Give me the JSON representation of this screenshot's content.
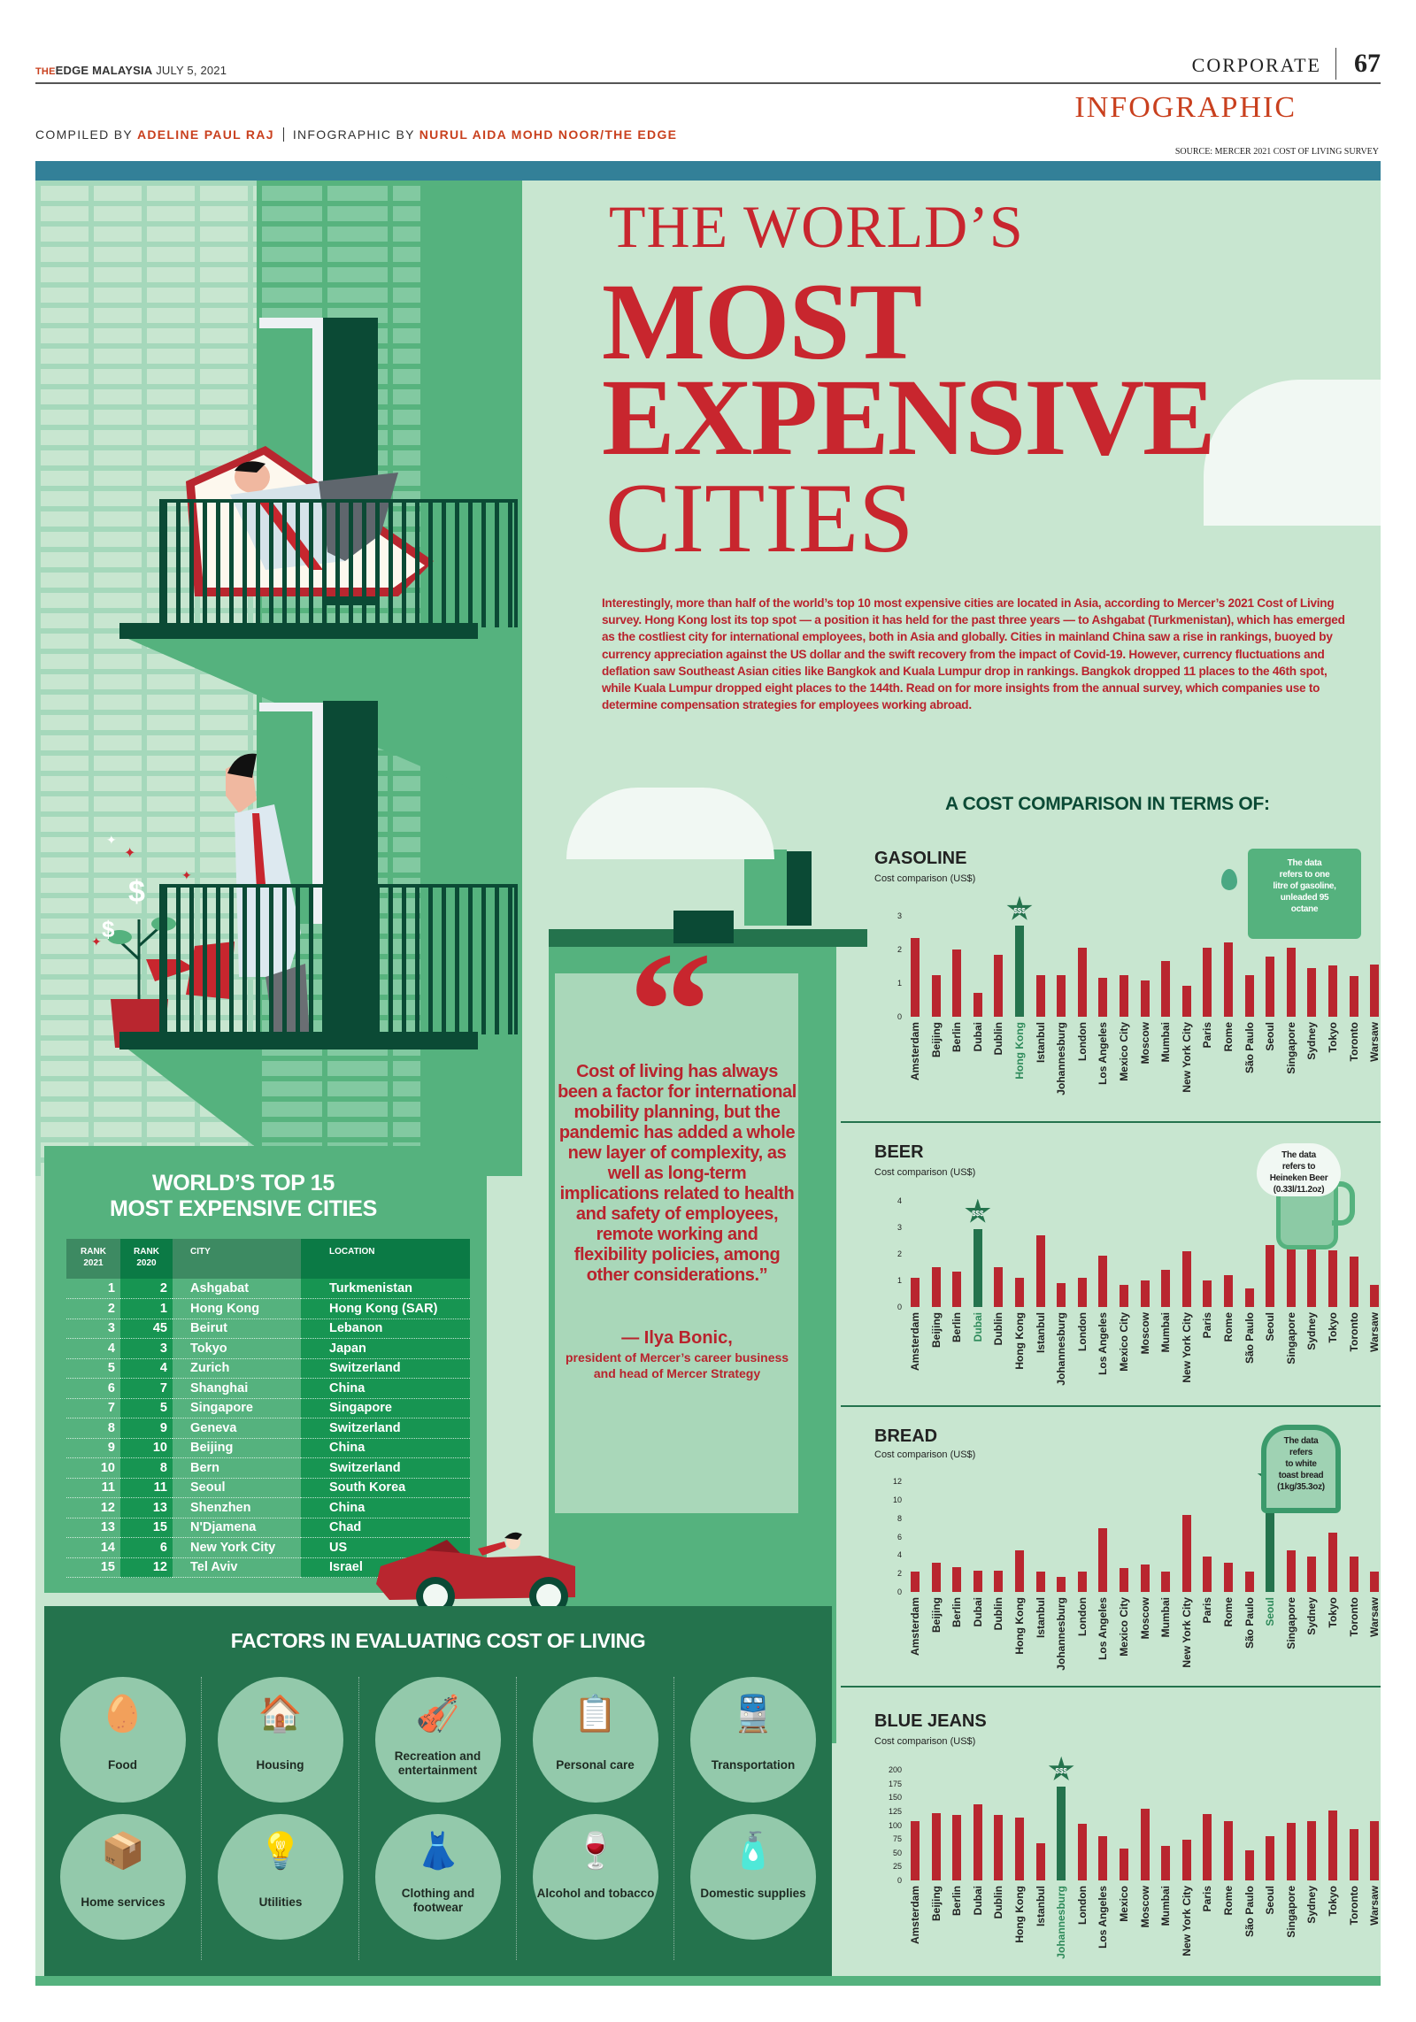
{
  "masthead": {
    "brand_the": "THE",
    "brand_edge": "EDGE",
    "brand_malaysia": "MALAYSIA",
    "date": "JULY 5, 2021",
    "section": "CORPORATE",
    "page_number": "67",
    "label": "INFOGRAPHIC",
    "compiled_prefix": "COMPILED BY",
    "compiled_name": "ADELINE PAUL RAJ",
    "infographic_prefix": "INFOGRAPHIC BY",
    "infographic_name": "NURUL AIDA MOHD NOOR/THE EDGE",
    "source": "SOURCE: MERCER 2021 COST OF LIVING SURVEY"
  },
  "headline": {
    "line1": "THE WORLD’S",
    "line2": "MOST",
    "line3": "EXPENSIVE",
    "line4": "CITIES"
  },
  "intro": "Interestingly, more than half of the world’s top 10 most expensive cities are located in Asia, according to Mercer’s 2021 Cost of Living survey. Hong Kong lost its top spot — a position it has held for the past three years — to Ashgabat (Turkmenistan), which has emerged as the costliest city for international employees, both in Asia and globally. Cities in mainland China saw a rise in rankings, buoyed by currency appreciation against the US dollar and the swift recovery from the impact of Covid-19. However, currency fluctuations and deflation saw Southeast Asian cities like Bangkok and Kuala Lumpur drop in rankings. Bangkok dropped 11 places to the 46th spot, while Kuala Lumpur dropped eight places to the 144th. Read on for more insights from the annual survey, which companies use to determine compensation strategies for employees working abroad.",
  "comparison_title": "A COST COMPARISON IN TERMS OF:",
  "colors": {
    "bar": "#b9262f",
    "highlight": "#24734d",
    "background": "#c8e6d0",
    "title_red": "#c8262e",
    "topbar": "#338098"
  },
  "charts": [
    {
      "title": "GASOLINE",
      "subtitle": "Cost comparison (US$)",
      "badge": "$$$",
      "note": "The data refers to one litre of gasoline, unleaded 95 octane",
      "note_lines": [
        "The data",
        "refers to one",
        "litre of gasoline,",
        "unleaded 95",
        "octane"
      ]
    },
    {
      "title": "BEER",
      "subtitle": "Cost comparison (US$)",
      "badge": "$$$",
      "note_lines": [
        "The data",
        "refers to",
        "Heineken Beer",
        "(0.33l/11.2oz)"
      ]
    },
    {
      "title": "BREAD",
      "subtitle": "Cost comparison (US$)",
      "badge": "$$$",
      "note_lines": [
        "The data",
        "refers",
        "to white",
        "toast bread",
        "(1kg/35.3oz)"
      ]
    },
    {
      "title": "BLUE JEANS",
      "subtitle": "Cost comparison (US$)",
      "badge": "$$$"
    }
  ],
  "chart_data": [
    {
      "type": "bar",
      "title": "GASOLINE",
      "ylabel": "Cost comparison (US$)",
      "categories": [
        "Amsterdam",
        "Beijing",
        "Berlin",
        "Dubai",
        "Dublin",
        "Hong Kong",
        "Istanbul",
        "Johannesburg",
        "London",
        "Los Angeles",
        "Mexico City",
        "Moscow",
        "Mumbai",
        "New York City",
        "Paris",
        "Rome",
        "São Paulo",
        "Seoul",
        "Singapore",
        "Sydney",
        "Tokyo",
        "Toronto",
        "Warsaw"
      ],
      "values": [
        2.35,
        1.25,
        2.0,
        0.72,
        1.83,
        2.7,
        1.25,
        1.25,
        2.05,
        1.15,
        1.25,
        1.07,
        1.65,
        0.92,
        2.05,
        2.2,
        1.25,
        1.8,
        2.05,
        1.45,
        1.52,
        1.22,
        1.55
      ],
      "highlight": "Hong Kong",
      "yticks": [
        0,
        1,
        2,
        3
      ],
      "ylim": [
        0,
        3
      ],
      "annotation": "The data refers to one litre of gasoline, unleaded 95 octane"
    },
    {
      "type": "bar",
      "title": "BEER",
      "ylabel": "Cost comparison (US$)",
      "categories": [
        "Amsterdam",
        "Beijing",
        "Berlin",
        "Dubai",
        "Dublin",
        "Hong Kong",
        "Istanbul",
        "Johannesburg",
        "London",
        "Los Angeles",
        "Mexico City",
        "Moscow",
        "Mumbai",
        "New York City",
        "Paris",
        "Rome",
        "São Paulo",
        "Seoul",
        "Singapore",
        "Sydney",
        "Tokyo",
        "Toronto",
        "Warsaw"
      ],
      "values": [
        1.1,
        1.5,
        1.35,
        2.95,
        1.5,
        1.1,
        2.7,
        0.9,
        1.1,
        1.95,
        0.85,
        1.0,
        1.4,
        2.1,
        1.0,
        1.2,
        0.7,
        2.35,
        2.35,
        2.8,
        2.15,
        1.9,
        0.85
      ],
      "highlight": "Dubai",
      "yticks": [
        0,
        1,
        2,
        3,
        4
      ],
      "ylim": [
        0,
        4
      ],
      "annotation": "The data refers to Heineken Beer (0.33l/11.2oz)"
    },
    {
      "type": "bar",
      "title": "BREAD",
      "ylabel": "Cost comparison (US$)",
      "categories": [
        "Amsterdam",
        "Beijing",
        "Berlin",
        "Dubai",
        "Dublin",
        "Hong Kong",
        "Istanbul",
        "Johannesburg",
        "London",
        "Los Angeles",
        "Mexico City",
        "Moscow",
        "Mumbai",
        "New York City",
        "Paris",
        "Rome",
        "São Paulo",
        "Seoul",
        "Singapore",
        "Sydney",
        "Tokyo",
        "Toronto",
        "Warsaw"
      ],
      "values": [
        2.2,
        3.2,
        2.7,
        2.3,
        2.3,
        4.5,
        2.2,
        1.6,
        2.2,
        6.9,
        2.6,
        3.0,
        2.2,
        8.4,
        3.8,
        3.2,
        2.2,
        10.6,
        4.5,
        3.8,
        6.4,
        3.8,
        2.2
      ],
      "highlight": "Seoul",
      "yticks": [
        0,
        2,
        4,
        6,
        8,
        10,
        12
      ],
      "ylim": [
        0,
        12
      ],
      "annotation": "The data refers to white toast bread (1kg/35.3oz)"
    },
    {
      "type": "bar",
      "title": "BLUE JEANS",
      "ylabel": "Cost comparison (US$)",
      "categories": [
        "Amsterdam",
        "Beijing",
        "Berlin",
        "Dubai",
        "Dublin",
        "Hong Kong",
        "Istanbul",
        "Johannesburg",
        "London",
        "Los Angeles",
        "Mexico",
        "Moscow",
        "Mumbai",
        "New York City",
        "Paris",
        "Rome",
        "São Paulo",
        "Seoul",
        "Singapore",
        "Sydney",
        "Tokyo",
        "Toronto",
        "Warsaw"
      ],
      "values": [
        108,
        122,
        119,
        137,
        119,
        113,
        68,
        170,
        103,
        80,
        58,
        130,
        62,
        74,
        120,
        108,
        54,
        80,
        104,
        108,
        126,
        93,
        108
      ],
      "highlight": "Johannesburg",
      "yticks": [
        0,
        25,
        50,
        75,
        100,
        125,
        150,
        175,
        200
      ],
      "ylim": [
        0,
        200
      ]
    }
  ],
  "top15": {
    "title_line1": "WORLD’S TOP 15",
    "title_line2": "MOST EXPENSIVE CITIES",
    "headers": {
      "rank2021": "RANK 2021",
      "rank2020": "RANK 2020",
      "city": "CITY",
      "location": "LOCATION"
    },
    "rows": [
      {
        "r21": "1",
        "r20": "2",
        "city": "Ashgabat",
        "loc": "Turkmenistan"
      },
      {
        "r21": "2",
        "r20": "1",
        "city": "Hong Kong",
        "loc": "Hong Kong (SAR)"
      },
      {
        "r21": "3",
        "r20": "45",
        "city": "Beirut",
        "loc": "Lebanon"
      },
      {
        "r21": "4",
        "r20": "3",
        "city": "Tokyo",
        "loc": "Japan"
      },
      {
        "r21": "5",
        "r20": "4",
        "city": "Zurich",
        "loc": "Switzerland"
      },
      {
        "r21": "6",
        "r20": "7",
        "city": "Shanghai",
        "loc": "China"
      },
      {
        "r21": "7",
        "r20": "5",
        "city": "Singapore",
        "loc": "Singapore"
      },
      {
        "r21": "8",
        "r20": "9",
        "city": "Geneva",
        "loc": "Switzerland"
      },
      {
        "r21": "9",
        "r20": "10",
        "city": "Beijing",
        "loc": "China"
      },
      {
        "r21": "10",
        "r20": "8",
        "city": "Bern",
        "loc": "Switzerland"
      },
      {
        "r21": "11",
        "r20": "11",
        "city": "Seoul",
        "loc": "South Korea"
      },
      {
        "r21": "12",
        "r20": "13",
        "city": "Shenzhen",
        "loc": "China"
      },
      {
        "r21": "13",
        "r20": "15",
        "city": "N'Djamena",
        "loc": "Chad"
      },
      {
        "r21": "14",
        "r20": "6",
        "city": "New York City",
        "loc": "US"
      },
      {
        "r21": "15",
        "r20": "12",
        "city": "Tel Aviv",
        "loc": "Israel"
      }
    ]
  },
  "quote": {
    "marks": "“",
    "text": "Cost of living has always been a factor for international mobility planning, but the pandemic has added a whole new layer of complexity, as well as long-term implications related to health and safety of employees, remote working and flexibility policies, among other considerations.”",
    "author": "— Ilya Bonic,",
    "role": "president of Mercer’s career business and head of Mercer Strategy"
  },
  "factors": {
    "title": "FACTORS IN EVALUATING COST OF LIVING",
    "items": [
      {
        "label": "Food",
        "icon": "🥚"
      },
      {
        "label": "Housing",
        "icon": "🏠"
      },
      {
        "label": "Recreation and entertainment",
        "icon": "🎻"
      },
      {
        "label": "Personal care",
        "icon": "📋"
      },
      {
        "label": "Transportation",
        "icon": "🚆"
      },
      {
        "label": "Home services",
        "icon": "📦"
      },
      {
        "label": "Utilities",
        "icon": "💡"
      },
      {
        "label": "Clothing and footwear",
        "icon": "👗"
      },
      {
        "label": "Alcohol and tobacco",
        "icon": "🍷"
      },
      {
        "label": "Domestic supplies",
        "icon": "🧴"
      }
    ]
  }
}
